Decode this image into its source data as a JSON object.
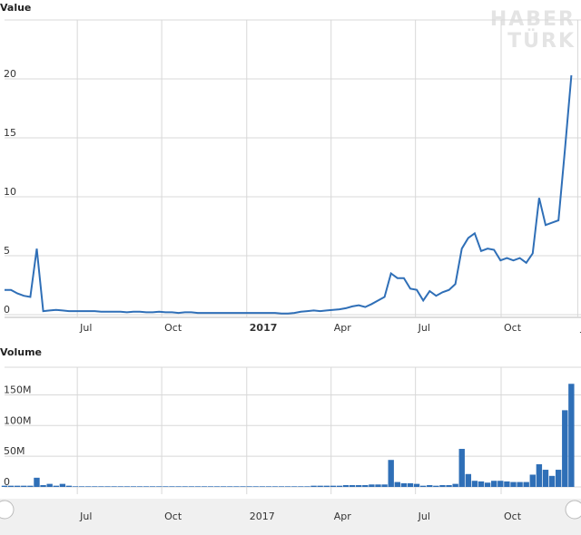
{
  "watermark": [
    "HABER",
    "TÜRK"
  ],
  "chart_data": [
    {
      "type": "line",
      "title": "Value",
      "color": "#2f6fb7",
      "values": [
        2.1,
        2.1,
        1.8,
        1.6,
        1.5,
        5.6,
        0.3,
        0.35,
        0.4,
        0.35,
        0.3,
        0.3,
        0.3,
        0.3,
        0.3,
        0.25,
        0.25,
        0.25,
        0.25,
        0.2,
        0.25,
        0.25,
        0.2,
        0.2,
        0.25,
        0.2,
        0.2,
        0.15,
        0.2,
        0.2,
        0.15,
        0.15,
        0.15,
        0.15,
        0.15,
        0.15,
        0.15,
        0.15,
        0.15,
        0.15,
        0.15,
        0.15,
        0.15,
        0.1,
        0.1,
        0.15,
        0.25,
        0.3,
        0.35,
        0.3,
        0.35,
        0.4,
        0.45,
        0.55,
        0.7,
        0.8,
        0.65,
        0.9,
        1.2,
        1.5,
        3.5,
        3.1,
        3.1,
        2.2,
        2.1,
        1.2,
        2.0,
        1.6,
        1.9,
        2.1,
        2.6,
        5.6,
        6.5,
        6.9,
        5.4,
        5.6,
        5.5,
        4.6,
        4.8,
        4.6,
        4.8,
        4.4,
        5.2,
        9.9,
        7.6,
        7.8,
        8.0,
        14.0,
        20.3
      ],
      "xlim": [
        0,
        89.5
      ],
      "xticks": [
        {
          "value": 11.3,
          "label": "Jul"
        },
        {
          "value": 24.4,
          "label": "Oct"
        },
        {
          "value": 37.6,
          "label": "2017",
          "bold": true
        },
        {
          "value": 50.7,
          "label": "Apr"
        },
        {
          "value": 63.8,
          "label": "Jul"
        },
        {
          "value": 77.1,
          "label": "Oct"
        },
        {
          "value": 89.0,
          "label": "J"
        }
      ],
      "ylim": [
        0,
        25
      ],
      "yticks": [
        0,
        5,
        10,
        15,
        20
      ],
      "grid": true
    },
    {
      "type": "bar",
      "title": "Volume",
      "color": "#2f6fb7",
      "values": [
        2000000,
        2000000,
        2000000,
        2000000,
        2000000,
        15000000,
        3000000,
        5000000,
        2000000,
        5000000,
        2000000,
        1000000,
        1000000,
        1000000,
        1000000,
        1000000,
        1000000,
        1000000,
        1000000,
        1000000,
        1000000,
        1000000,
        1000000,
        1000000,
        1000000,
        1000000,
        1000000,
        1000000,
        1000000,
        1000000,
        1000000,
        1000000,
        1000000,
        1000000,
        1000000,
        1000000,
        1000000,
        1000000,
        1000000,
        1000000,
        1000000,
        1000000,
        1000000,
        1000000,
        1000000,
        1000000,
        1000000,
        1000000,
        2000000,
        2000000,
        2000000,
        2000000,
        2000000,
        3000000,
        3000000,
        3000000,
        3000000,
        4000000,
        4000000,
        4000000,
        44000000,
        8000000,
        6000000,
        6000000,
        5000000,
        2000000,
        3000000,
        2000000,
        3000000,
        3000000,
        5000000,
        62000000,
        21000000,
        10000000,
        9000000,
        7000000,
        10000000,
        10000000,
        9000000,
        8000000,
        8000000,
        8000000,
        20000000,
        37000000,
        28000000,
        18000000,
        28000000,
        125000000,
        168000000
      ],
      "xlim": [
        0,
        89.5
      ],
      "xticks": [
        {
          "value": 11.3,
          "label": "Jul"
        },
        {
          "value": 24.4,
          "label": "Oct"
        },
        {
          "value": 37.6,
          "label": "2017"
        },
        {
          "value": 50.7,
          "label": "Apr"
        },
        {
          "value": 63.8,
          "label": "Jul"
        },
        {
          "value": 77.1,
          "label": "Oct"
        }
      ],
      "ylim": [
        0,
        195000000
      ],
      "yticks": [
        {
          "value": 0,
          "label": "0"
        },
        {
          "value": 50000000,
          "label": "50M"
        },
        {
          "value": 100000000,
          "label": "100M"
        },
        {
          "value": 150000000,
          "label": "150M"
        }
      ],
      "grid": true
    }
  ]
}
